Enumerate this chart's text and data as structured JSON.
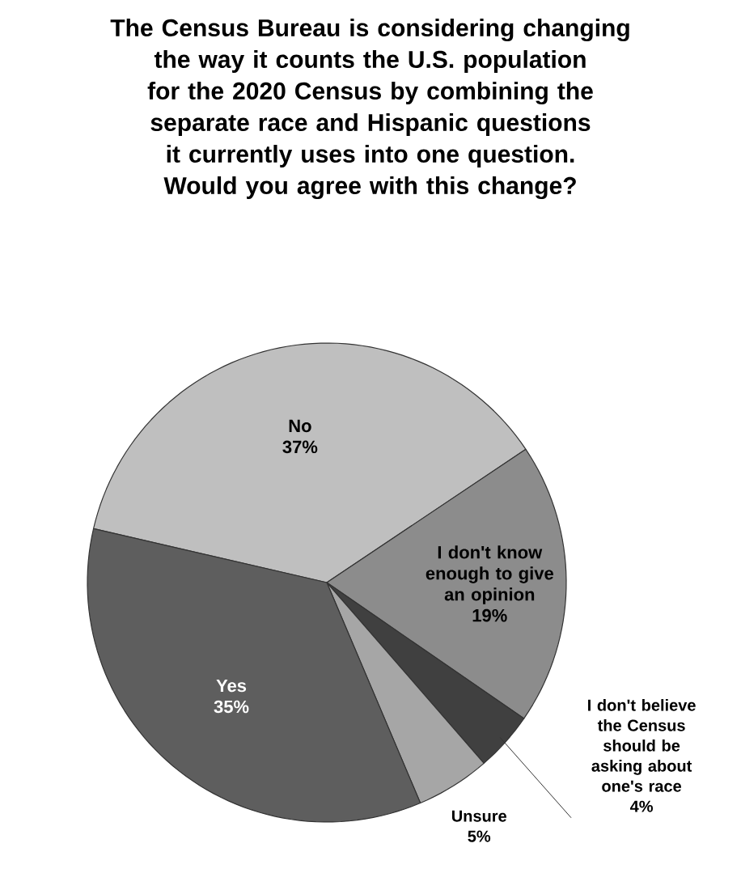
{
  "chart_data": {
    "type": "pie",
    "title": "The Census Bureau is considering changing the way it counts the U.S. population for the 2020 Census by combining the separate race and Hispanic questions it currently uses into one question. Would you agree with this change?",
    "categories": [
      "No",
      "I don't know enough to give an opinion",
      "I don't believe the Census should be asking about one's race",
      "Unsure",
      "Yes"
    ],
    "values": [
      37,
      19,
      4,
      5,
      35
    ],
    "value_labels": [
      "37%",
      "19%",
      "4%",
      "5%",
      "35%"
    ],
    "colors": [
      "#bfbfbf",
      "#8c8c8c",
      "#404040",
      "#a6a6a6",
      "#5e5e5e"
    ]
  }
}
